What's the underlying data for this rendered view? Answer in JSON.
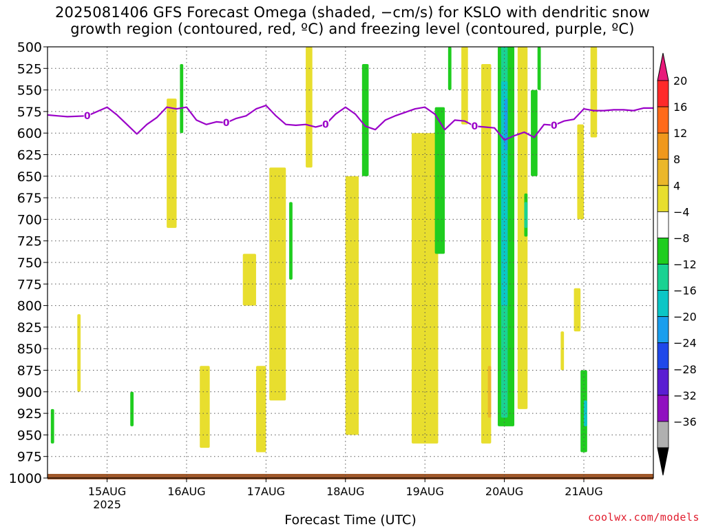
{
  "title": {
    "line1": "2025081406 GFS Forecast Omega (shaded, −cm/s) for KSLO with dendritic snow",
    "line2": "growth region (contoured, red, ºC) and freezing level (contoured, purple, ºC)"
  },
  "credit": "coolwx.com/models",
  "chart_data": {
    "type": "heatmap",
    "xlabel": "Forecast Time (UTC)",
    "ylabel": "",
    "x_range": [
      "2025-08-14 06",
      "2025-08-21 21"
    ],
    "y_range": [
      1000,
      500
    ],
    "y_ticks": [
      500,
      525,
      550,
      575,
      600,
      625,
      650,
      675,
      700,
      725,
      750,
      775,
      800,
      825,
      850,
      875,
      900,
      925,
      950,
      975,
      1000
    ],
    "x_ticks": [
      {
        "label": "15AUG",
        "sub": "2025",
        "t": 18
      },
      {
        "label": "16AUG",
        "sub": "",
        "t": 42
      },
      {
        "label": "17AUG",
        "sub": "",
        "t": 66
      },
      {
        "label": "18AUG",
        "sub": "",
        "t": 90
      },
      {
        "label": "19AUG",
        "sub": "",
        "t": 114
      },
      {
        "label": "20AUG",
        "sub": "",
        "t": 138
      },
      {
        "label": "21AUG",
        "sub": "",
        "t": 162
      }
    ],
    "grid": true,
    "colorbar": {
      "labels": [
        "20",
        "16",
        "12",
        "8",
        "4",
        "−4",
        "−8",
        "−12",
        "−16",
        "−20",
        "−24",
        "−28",
        "−32",
        "−36"
      ],
      "colors": [
        "#ff2a2a",
        "#ff6a1a",
        "#f0981c",
        "#ebb72a",
        "#e8de2e",
        "#ffffff",
        "#1fcd1f",
        "#1ad292",
        "#0bc6c6",
        "#1a9eee",
        "#1f48ea",
        "#5a1ed2",
        "#9010c0",
        "#b0b0b0"
      ],
      "over_color": "#e8197a",
      "under_color": "#000000"
    },
    "freezing_level": {
      "name": "0",
      "color": "#9a00c8",
      "t": [
        0,
        3,
        6,
        12,
        18,
        21,
        24,
        27,
        30,
        33,
        36,
        39,
        42,
        45,
        48,
        51,
        54,
        57,
        60,
        63,
        66,
        69,
        72,
        75,
        78,
        81,
        84,
        87,
        90,
        93,
        96,
        99,
        102,
        105,
        108,
        111,
        114,
        117,
        120,
        123,
        126,
        129,
        132,
        135,
        138,
        141,
        144,
        147,
        150,
        153,
        156,
        159,
        162,
        165,
        168,
        171,
        174,
        177,
        180,
        183
      ],
      "p": [
        579,
        580,
        581,
        580,
        570,
        579,
        590,
        601,
        590,
        582,
        570,
        572,
        570,
        585,
        590,
        587,
        588,
        583,
        580,
        572,
        568,
        580,
        590,
        591,
        590,
        593,
        590,
        578,
        570,
        578,
        592,
        596,
        585,
        580,
        576,
        572,
        570,
        578,
        596,
        585,
        586,
        592,
        593,
        594,
        608,
        603,
        599,
        605,
        590,
        591,
        586,
        584,
        572,
        574,
        574,
        573,
        573,
        574,
        571,
        571
      ],
      "label_t": [
        12,
        54,
        84,
        129,
        153
      ]
    },
    "omega_shading": [
      {
        "color": "#e8de2e",
        "t": [
          9,
          10
        ],
        "p": [
          810,
          900
        ]
      },
      {
        "color": "#e8de2e",
        "t": [
          36,
          39
        ],
        "p": [
          560,
          710
        ]
      },
      {
        "color": "#e8de2e",
        "t": [
          46,
          49
        ],
        "p": [
          870,
          965
        ]
      },
      {
        "color": "#e8de2e",
        "t": [
          59,
          63
        ],
        "p": [
          740,
          800
        ]
      },
      {
        "color": "#e8de2e",
        "t": [
          67,
          72
        ],
        "p": [
          640,
          910
        ]
      },
      {
        "color": "#e8de2e",
        "t": [
          63,
          66
        ],
        "p": [
          870,
          970
        ]
      },
      {
        "color": "#e8de2e",
        "t": [
          78,
          80
        ],
        "p": [
          500,
          640
        ]
      },
      {
        "color": "#e8de2e",
        "t": [
          90,
          94
        ],
        "p": [
          650,
          950
        ]
      },
      {
        "color": "#e8de2e",
        "t": [
          110,
          118
        ],
        "p": [
          600,
          960
        ]
      },
      {
        "color": "#e8de2e",
        "t": [
          125,
          127
        ],
        "p": [
          500,
          590
        ]
      },
      {
        "color": "#e8de2e",
        "t": [
          131,
          134
        ],
        "p": [
          520,
          960
        ]
      },
      {
        "color": "#e8de2e",
        "t": [
          142,
          145
        ],
        "p": [
          500,
          920
        ]
      },
      {
        "color": "#e8de2e",
        "t": [
          160,
          162
        ],
        "p": [
          590,
          700
        ]
      },
      {
        "color": "#e8de2e",
        "t": [
          164,
          166
        ],
        "p": [
          500,
          605
        ]
      },
      {
        "color": "#e8de2e",
        "t": [
          155,
          156
        ],
        "p": [
          830,
          875
        ]
      },
      {
        "color": "#e8de2e",
        "t": [
          159,
          161
        ],
        "p": [
          780,
          830
        ]
      },
      {
        "color": "#ebb72a",
        "t": [
          133,
          134
        ],
        "p": [
          870,
          930
        ]
      },
      {
        "color": "#1fcd1f",
        "t": [
          40,
          41
        ],
        "p": [
          520,
          600
        ]
      },
      {
        "color": "#1fcd1f",
        "t": [
          73,
          74
        ],
        "p": [
          680,
          770
        ]
      },
      {
        "color": "#1fcd1f",
        "t": [
          95,
          97
        ],
        "p": [
          520,
          650
        ]
      },
      {
        "color": "#1fcd1f",
        "t": [
          117,
          120
        ],
        "p": [
          570,
          740
        ]
      },
      {
        "color": "#1fcd1f",
        "t": [
          121,
          122
        ],
        "p": [
          500,
          550
        ]
      },
      {
        "color": "#1fcd1f",
        "t": [
          136,
          141
        ],
        "p": [
          500,
          940
        ]
      },
      {
        "color": "#1fcd1f",
        "t": [
          146,
          148
        ],
        "p": [
          550,
          650
        ]
      },
      {
        "color": "#1fcd1f",
        "t": [
          144,
          145
        ],
        "p": [
          670,
          720
        ]
      },
      {
        "color": "#1fcd1f",
        "t": [
          148,
          149
        ],
        "p": [
          500,
          550
        ]
      },
      {
        "color": "#1fcd1f",
        "t": [
          161,
          163
        ],
        "p": [
          875,
          970
        ]
      },
      {
        "color": "#1fcd1f",
        "t": [
          25,
          26
        ],
        "p": [
          900,
          940
        ]
      },
      {
        "color": "#1fcd1f",
        "t": [
          1,
          2
        ],
        "p": [
          920,
          960
        ]
      },
      {
        "color": "#1ad292",
        "t": [
          137,
          139
        ],
        "p": [
          500,
          930
        ]
      },
      {
        "color": "#1ad292",
        "t": [
          144,
          145
        ],
        "p": [
          680,
          710
        ]
      },
      {
        "color": "#0bc6c6",
        "t": [
          137,
          139
        ],
        "p": [
          540,
          800
        ]
      },
      {
        "color": "#0bc6c6",
        "t": [
          162,
          163
        ],
        "p": [
          910,
          940
        ]
      },
      {
        "color": "#1a9eee",
        "t": [
          138,
          139
        ],
        "p": [
          560,
          620
        ]
      }
    ],
    "terrain": {
      "color": "#a0582a",
      "p": 1000
    }
  }
}
